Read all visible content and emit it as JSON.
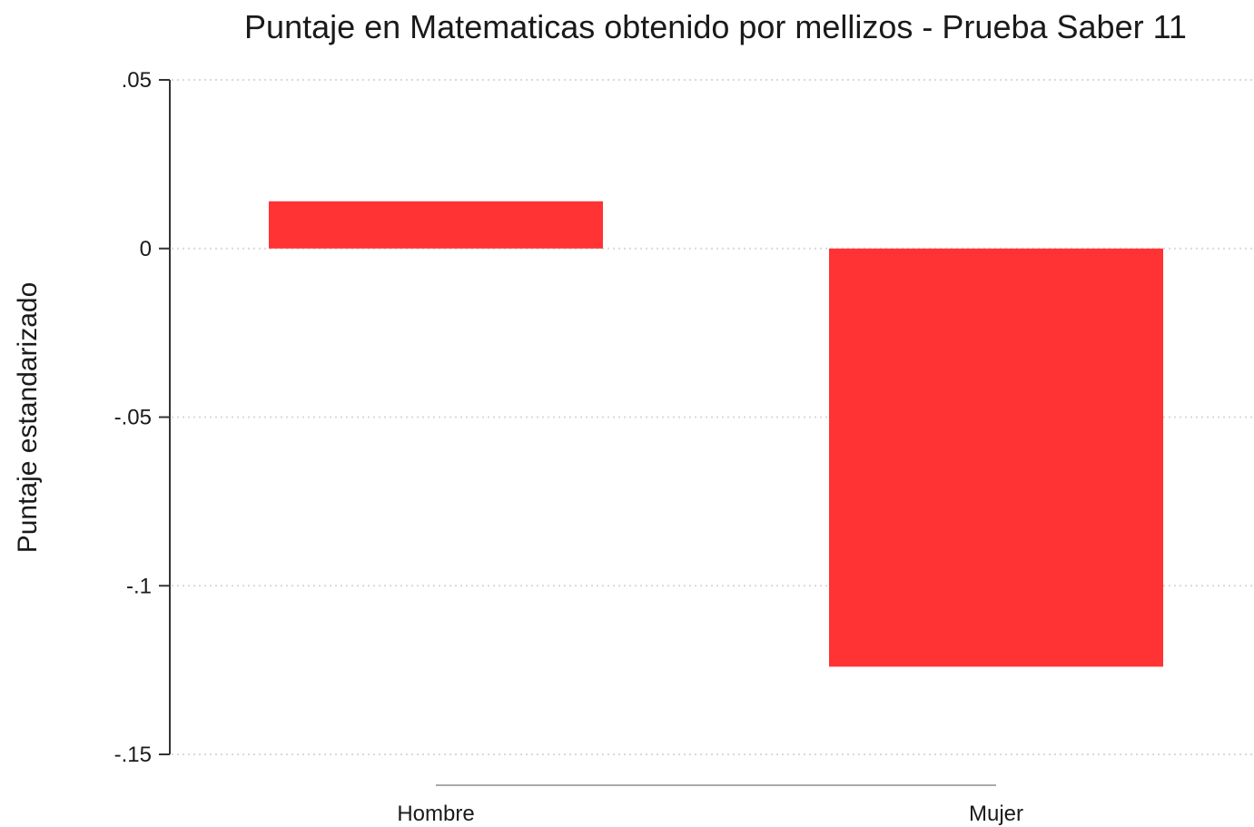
{
  "chart_data": {
    "type": "bar",
    "title": "Puntaje en Matematicas obtenido por mellizos - Prueba Saber 11",
    "ylabel": "Puntaje estandarizado",
    "xlabel": "",
    "categories": [
      "Hombre",
      "Mujer"
    ],
    "values": [
      0.014,
      -0.124
    ],
    "ylim": [
      -0.15,
      0.05
    ],
    "yticks": [
      0.05,
      0,
      -0.05,
      -0.1,
      -0.15
    ],
    "ytick_labels": [
      ".05",
      "0",
      "-.05",
      "-.1",
      "-.15"
    ],
    "grid": true,
    "bar_color": "#ff3333",
    "grid_color": "#d9d9d9",
    "axis_color": "#333333"
  }
}
